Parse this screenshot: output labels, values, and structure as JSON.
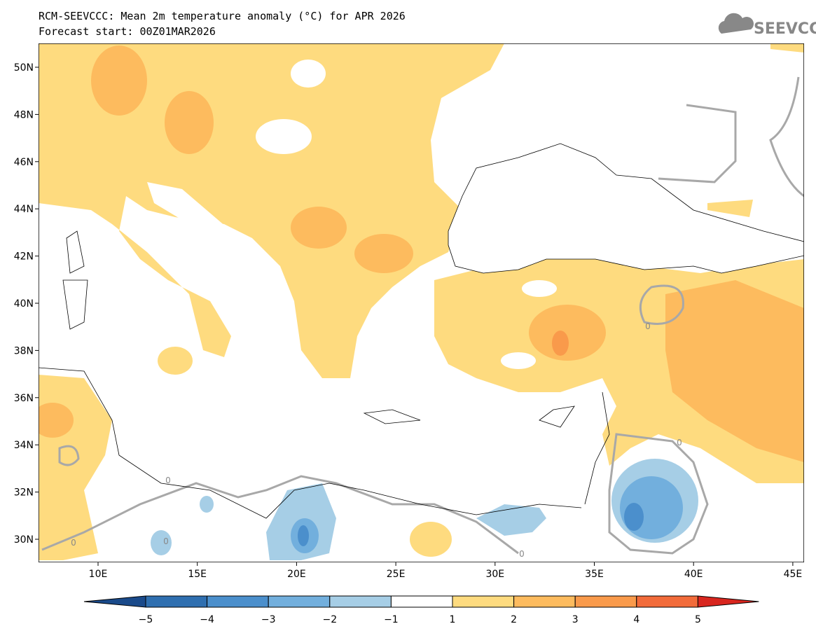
{
  "header": {
    "title": "RCM-SEEVCCC: Mean 2m temperature anomaly (°C) for APR 2026",
    "subtitle": "Forecast start: 00Z01MAR2026",
    "logo": "SEEVCCC"
  },
  "map": {
    "lat_labels": [
      "30N",
      "32N",
      "34N",
      "36N",
      "38N",
      "40N",
      "42N",
      "44N",
      "46N",
      "48N",
      "50N"
    ],
    "lon_labels": [
      "10E",
      "15E",
      "20E",
      "25E",
      "30E",
      "35E",
      "40E",
      "45E"
    ],
    "contour_labels": [
      "0",
      "0",
      "0",
      "0",
      "0",
      "0"
    ],
    "colorbar": {
      "ticks": [
        {
          "value": -5,
          "label": "−5"
        },
        {
          "value": -4,
          "label": "−4"
        },
        {
          "value": -3,
          "label": "−3"
        },
        {
          "value": -2,
          "label": "−2"
        },
        {
          "value": -1,
          "label": "−1"
        },
        1,
        2,
        3,
        4,
        5
      ],
      "colors": [
        "#1a4a8a",
        "#2f6fb0",
        "#4b8fcc",
        "#72afdd",
        "#a6cee6",
        "#ffffff",
        "#fedb7f",
        "#fdbb5e",
        "#f99a4b",
        "#f26b3a",
        "#d8261f"
      ]
    }
  }
}
